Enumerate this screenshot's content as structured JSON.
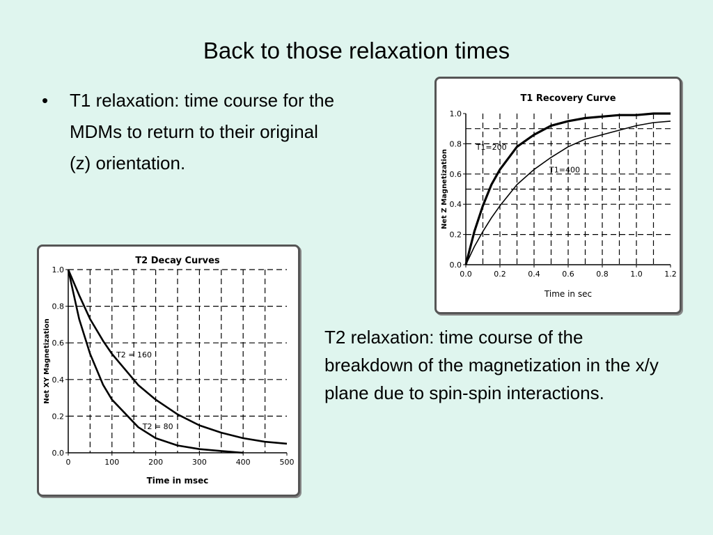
{
  "slide": {
    "title": "Back to those relaxation times",
    "bullet_symbol": "•",
    "bullet_text": "T1 relaxation: time course for the\n MDMs to return to their original\n(z) orientation.",
    "t2_text": "T2 relaxation: time course of the breakdown of the magnetization in the x/y plane due to spin-spin interactions."
  },
  "chart_data": [
    {
      "id": "t1",
      "type": "line",
      "title": "T1 Recovery Curve",
      "xlabel": "Time in sec",
      "ylabel": "Net Z Magnetization",
      "xlim": [
        0,
        1.2
      ],
      "ylim": [
        0,
        1.0
      ],
      "x_ticks": [
        "0.0",
        "0.2",
        "0.4",
        "0.6",
        "0.8",
        "1.0",
        "1.2"
      ],
      "y_ticks": [
        "0.0",
        "0.2",
        "0.4",
        "0.6",
        "0.8",
        "1.0"
      ],
      "grid": true,
      "series": [
        {
          "name": "T1=200",
          "x": [
            0,
            0.05,
            0.1,
            0.15,
            0.2,
            0.3,
            0.4,
            0.5,
            0.6,
            0.7,
            0.8,
            0.9,
            1.0,
            1.1,
            1.2
          ],
          "y": [
            0,
            0.22,
            0.39,
            0.53,
            0.63,
            0.78,
            0.86,
            0.92,
            0.95,
            0.97,
            0.98,
            0.99,
            0.99,
            1.0,
            1.0
          ]
        },
        {
          "name": "T1=400",
          "x": [
            0,
            0.05,
            0.1,
            0.15,
            0.2,
            0.3,
            0.4,
            0.5,
            0.6,
            0.7,
            0.8,
            0.9,
            1.0,
            1.1,
            1.2
          ],
          "y": [
            0,
            0.12,
            0.22,
            0.31,
            0.39,
            0.53,
            0.63,
            0.71,
            0.78,
            0.83,
            0.86,
            0.89,
            0.92,
            0.94,
            0.95
          ]
        }
      ],
      "labels": [
        {
          "text": "T1=200",
          "x": 0.06,
          "y": 0.76
        },
        {
          "text": "T1=400",
          "x": 0.49,
          "y": 0.61
        }
      ]
    },
    {
      "id": "t2",
      "type": "line",
      "title": "T2 Decay Curves",
      "xlabel": "Time in msec",
      "ylabel": "Net XY Magnetization",
      "xlim": [
        0,
        500
      ],
      "ylim": [
        0,
        1.0
      ],
      "x_ticks": [
        "0",
        "100",
        "200",
        "300",
        "400",
        "500"
      ],
      "y_ticks": [
        "0.0",
        "0.2",
        "0.4",
        "0.6",
        "0.8",
        "1.0"
      ],
      "grid": true,
      "series": [
        {
          "name": "T2 = 160",
          "x": [
            0,
            25,
            50,
            80,
            100,
            160,
            200,
            250,
            300,
            350,
            400,
            450,
            500
          ],
          "y": [
            1.0,
            0.86,
            0.73,
            0.61,
            0.54,
            0.37,
            0.29,
            0.21,
            0.15,
            0.11,
            0.08,
            0.06,
            0.05
          ]
        },
        {
          "name": "T2 = 80",
          "x": [
            0,
            25,
            50,
            80,
            100,
            160,
            200,
            250,
            300,
            350,
            400
          ],
          "y": [
            1.0,
            0.73,
            0.54,
            0.37,
            0.29,
            0.14,
            0.08,
            0.04,
            0.02,
            0.01,
            0.0
          ]
        }
      ],
      "labels": [
        {
          "text": "T2 = 160",
          "x": 110,
          "y": 0.52
        },
        {
          "text": "T2 = 80",
          "x": 170,
          "y": 0.13
        }
      ]
    }
  ]
}
